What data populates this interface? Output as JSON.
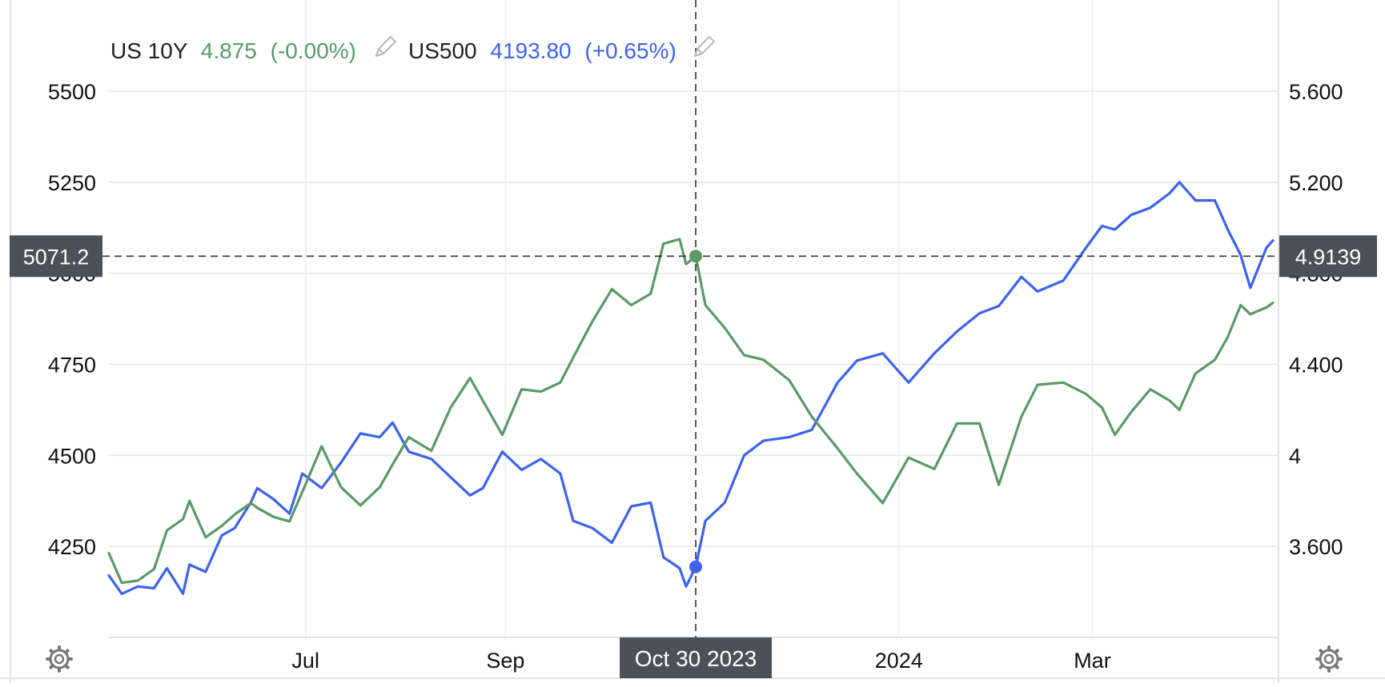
{
  "legend": {
    "us10y": {
      "name": "US 10Y",
      "value": "4.875",
      "change": "(-0.00%)",
      "color": "#5b9a68",
      "icon": "pencil-icon"
    },
    "us500": {
      "name": "US500",
      "value": "4193.80",
      "change": "(+0.65%)",
      "color": "#3d63ee",
      "icon": "pencil-icon"
    }
  },
  "crosshair": {
    "left_label": "5071.2",
    "right_label": "4.9139",
    "date_label": "Oct 30 2023"
  },
  "icons": {
    "settings_left": "gear-icon",
    "settings_right": "gear-icon"
  },
  "chart_data": {
    "type": "line",
    "x_ticks": [
      "Jul",
      "Sep",
      "2024",
      "Mar"
    ],
    "left_axis": {
      "ticks": [
        "4250",
        "4500",
        "4750",
        "5000",
        "5250",
        "5500"
      ],
      "range": [
        4000,
        5500
      ]
    },
    "right_axis": {
      "ticks": [
        "3.600",
        "4",
        "4.400",
        "4.800",
        "5.200",
        "5.600"
      ],
      "range": [
        3.2,
        5.6
      ]
    },
    "x_range": [
      "2023-05-01",
      "2024-04-26"
    ],
    "grid": true,
    "legend_position": "top-left",
    "series": [
      {
        "name": "US500",
        "axis": "left",
        "color": "#3d63ee",
        "points": [
          [
            "2023-05-01",
            4170
          ],
          [
            "2023-05-05",
            4120
          ],
          [
            "2023-05-10",
            4140
          ],
          [
            "2023-05-15",
            4135
          ],
          [
            "2023-05-19",
            4190
          ],
          [
            "2023-05-24",
            4120
          ],
          [
            "2023-05-26",
            4200
          ],
          [
            "2023-05-31",
            4180
          ],
          [
            "2023-06-05",
            4280
          ],
          [
            "2023-06-09",
            4300
          ],
          [
            "2023-06-14",
            4370
          ],
          [
            "2023-06-16",
            4410
          ],
          [
            "2023-06-21",
            4380
          ],
          [
            "2023-06-26",
            4340
          ],
          [
            "2023-06-30",
            4450
          ],
          [
            "2023-07-06",
            4410
          ],
          [
            "2023-07-12",
            4480
          ],
          [
            "2023-07-18",
            4560
          ],
          [
            "2023-07-24",
            4550
          ],
          [
            "2023-07-28",
            4590
          ],
          [
            "2023-08-02",
            4510
          ],
          [
            "2023-08-09",
            4490
          ],
          [
            "2023-08-15",
            4440
          ],
          [
            "2023-08-21",
            4390
          ],
          [
            "2023-08-25",
            4410
          ],
          [
            "2023-08-31",
            4510
          ],
          [
            "2023-09-06",
            4460
          ],
          [
            "2023-09-12",
            4490
          ],
          [
            "2023-09-18",
            4450
          ],
          [
            "2023-09-22",
            4320
          ],
          [
            "2023-09-28",
            4300
          ],
          [
            "2023-10-04",
            4260
          ],
          [
            "2023-10-10",
            4360
          ],
          [
            "2023-10-16",
            4370
          ],
          [
            "2023-10-20",
            4220
          ],
          [
            "2023-10-25",
            4190
          ],
          [
            "2023-10-27",
            4140
          ],
          [
            "2023-10-30",
            4193.8
          ],
          [
            "2023-11-02",
            4320
          ],
          [
            "2023-11-08",
            4370
          ],
          [
            "2023-11-14",
            4500
          ],
          [
            "2023-11-20",
            4540
          ],
          [
            "2023-11-28",
            4550
          ],
          [
            "2023-12-05",
            4570
          ],
          [
            "2023-12-13",
            4700
          ],
          [
            "2023-12-19",
            4760
          ],
          [
            "2023-12-27",
            4780
          ],
          [
            "2024-01-04",
            4700
          ],
          [
            "2024-01-12",
            4780
          ],
          [
            "2024-01-19",
            4840
          ],
          [
            "2024-01-26",
            4890
          ],
          [
            "2024-02-01",
            4910
          ],
          [
            "2024-02-08",
            4990
          ],
          [
            "2024-02-13",
            4950
          ],
          [
            "2024-02-21",
            4980
          ],
          [
            "2024-02-28",
            5070
          ],
          [
            "2024-03-04",
            5130
          ],
          [
            "2024-03-08",
            5120
          ],
          [
            "2024-03-13",
            5160
          ],
          [
            "2024-03-19",
            5180
          ],
          [
            "2024-03-25",
            5220
          ],
          [
            "2024-03-28",
            5250
          ],
          [
            "2024-04-02",
            5200
          ],
          [
            "2024-04-08",
            5200
          ],
          [
            "2024-04-12",
            5120
          ],
          [
            "2024-04-16",
            5050
          ],
          [
            "2024-04-19",
            4960
          ],
          [
            "2024-04-24",
            5070
          ],
          [
            "2024-04-26",
            5090
          ]
        ]
      },
      {
        "name": "US 10Y",
        "axis": "right",
        "color": "#5b9a68",
        "points": [
          [
            "2023-05-01",
            3.57
          ],
          [
            "2023-05-05",
            3.44
          ],
          [
            "2023-05-10",
            3.45
          ],
          [
            "2023-05-15",
            3.5
          ],
          [
            "2023-05-19",
            3.67
          ],
          [
            "2023-05-24",
            3.72
          ],
          [
            "2023-05-26",
            3.8
          ],
          [
            "2023-05-31",
            3.64
          ],
          [
            "2023-06-05",
            3.69
          ],
          [
            "2023-06-09",
            3.74
          ],
          [
            "2023-06-14",
            3.79
          ],
          [
            "2023-06-16",
            3.77
          ],
          [
            "2023-06-21",
            3.73
          ],
          [
            "2023-06-26",
            3.71
          ],
          [
            "2023-06-30",
            3.84
          ],
          [
            "2023-07-06",
            4.04
          ],
          [
            "2023-07-12",
            3.86
          ],
          [
            "2023-07-18",
            3.78
          ],
          [
            "2023-07-24",
            3.86
          ],
          [
            "2023-07-28",
            3.96
          ],
          [
            "2023-08-02",
            4.08
          ],
          [
            "2023-08-09",
            4.02
          ],
          [
            "2023-08-15",
            4.21
          ],
          [
            "2023-08-21",
            4.34
          ],
          [
            "2023-08-25",
            4.24
          ],
          [
            "2023-08-31",
            4.09
          ],
          [
            "2023-09-06",
            4.29
          ],
          [
            "2023-09-12",
            4.28
          ],
          [
            "2023-09-18",
            4.32
          ],
          [
            "2023-09-22",
            4.43
          ],
          [
            "2023-09-28",
            4.59
          ],
          [
            "2023-10-04",
            4.73
          ],
          [
            "2023-10-10",
            4.66
          ],
          [
            "2023-10-16",
            4.71
          ],
          [
            "2023-10-20",
            4.93
          ],
          [
            "2023-10-25",
            4.95
          ],
          [
            "2023-10-27",
            4.84
          ],
          [
            "2023-10-30",
            4.875
          ],
          [
            "2023-11-02",
            4.66
          ],
          [
            "2023-11-08",
            4.56
          ],
          [
            "2023-11-14",
            4.44
          ],
          [
            "2023-11-20",
            4.42
          ],
          [
            "2023-11-28",
            4.33
          ],
          [
            "2023-12-05",
            4.17
          ],
          [
            "2023-12-13",
            4.03
          ],
          [
            "2023-12-19",
            3.92
          ],
          [
            "2023-12-27",
            3.79
          ],
          [
            "2024-01-04",
            3.99
          ],
          [
            "2024-01-12",
            3.94
          ],
          [
            "2024-01-19",
            4.14
          ],
          [
            "2024-01-26",
            4.14
          ],
          [
            "2024-02-01",
            3.87
          ],
          [
            "2024-02-08",
            4.17
          ],
          [
            "2024-02-13",
            4.31
          ],
          [
            "2024-02-21",
            4.32
          ],
          [
            "2024-02-28",
            4.27
          ],
          [
            "2024-03-04",
            4.21
          ],
          [
            "2024-03-08",
            4.09
          ],
          [
            "2024-03-13",
            4.19
          ],
          [
            "2024-03-19",
            4.29
          ],
          [
            "2024-03-25",
            4.24
          ],
          [
            "2024-03-28",
            4.2
          ],
          [
            "2024-04-02",
            4.36
          ],
          [
            "2024-04-08",
            4.42
          ],
          [
            "2024-04-12",
            4.52
          ],
          [
            "2024-04-16",
            4.66
          ],
          [
            "2024-04-19",
            4.62
          ],
          [
            "2024-04-24",
            4.65
          ],
          [
            "2024-04-26",
            4.67
          ]
        ]
      }
    ]
  }
}
